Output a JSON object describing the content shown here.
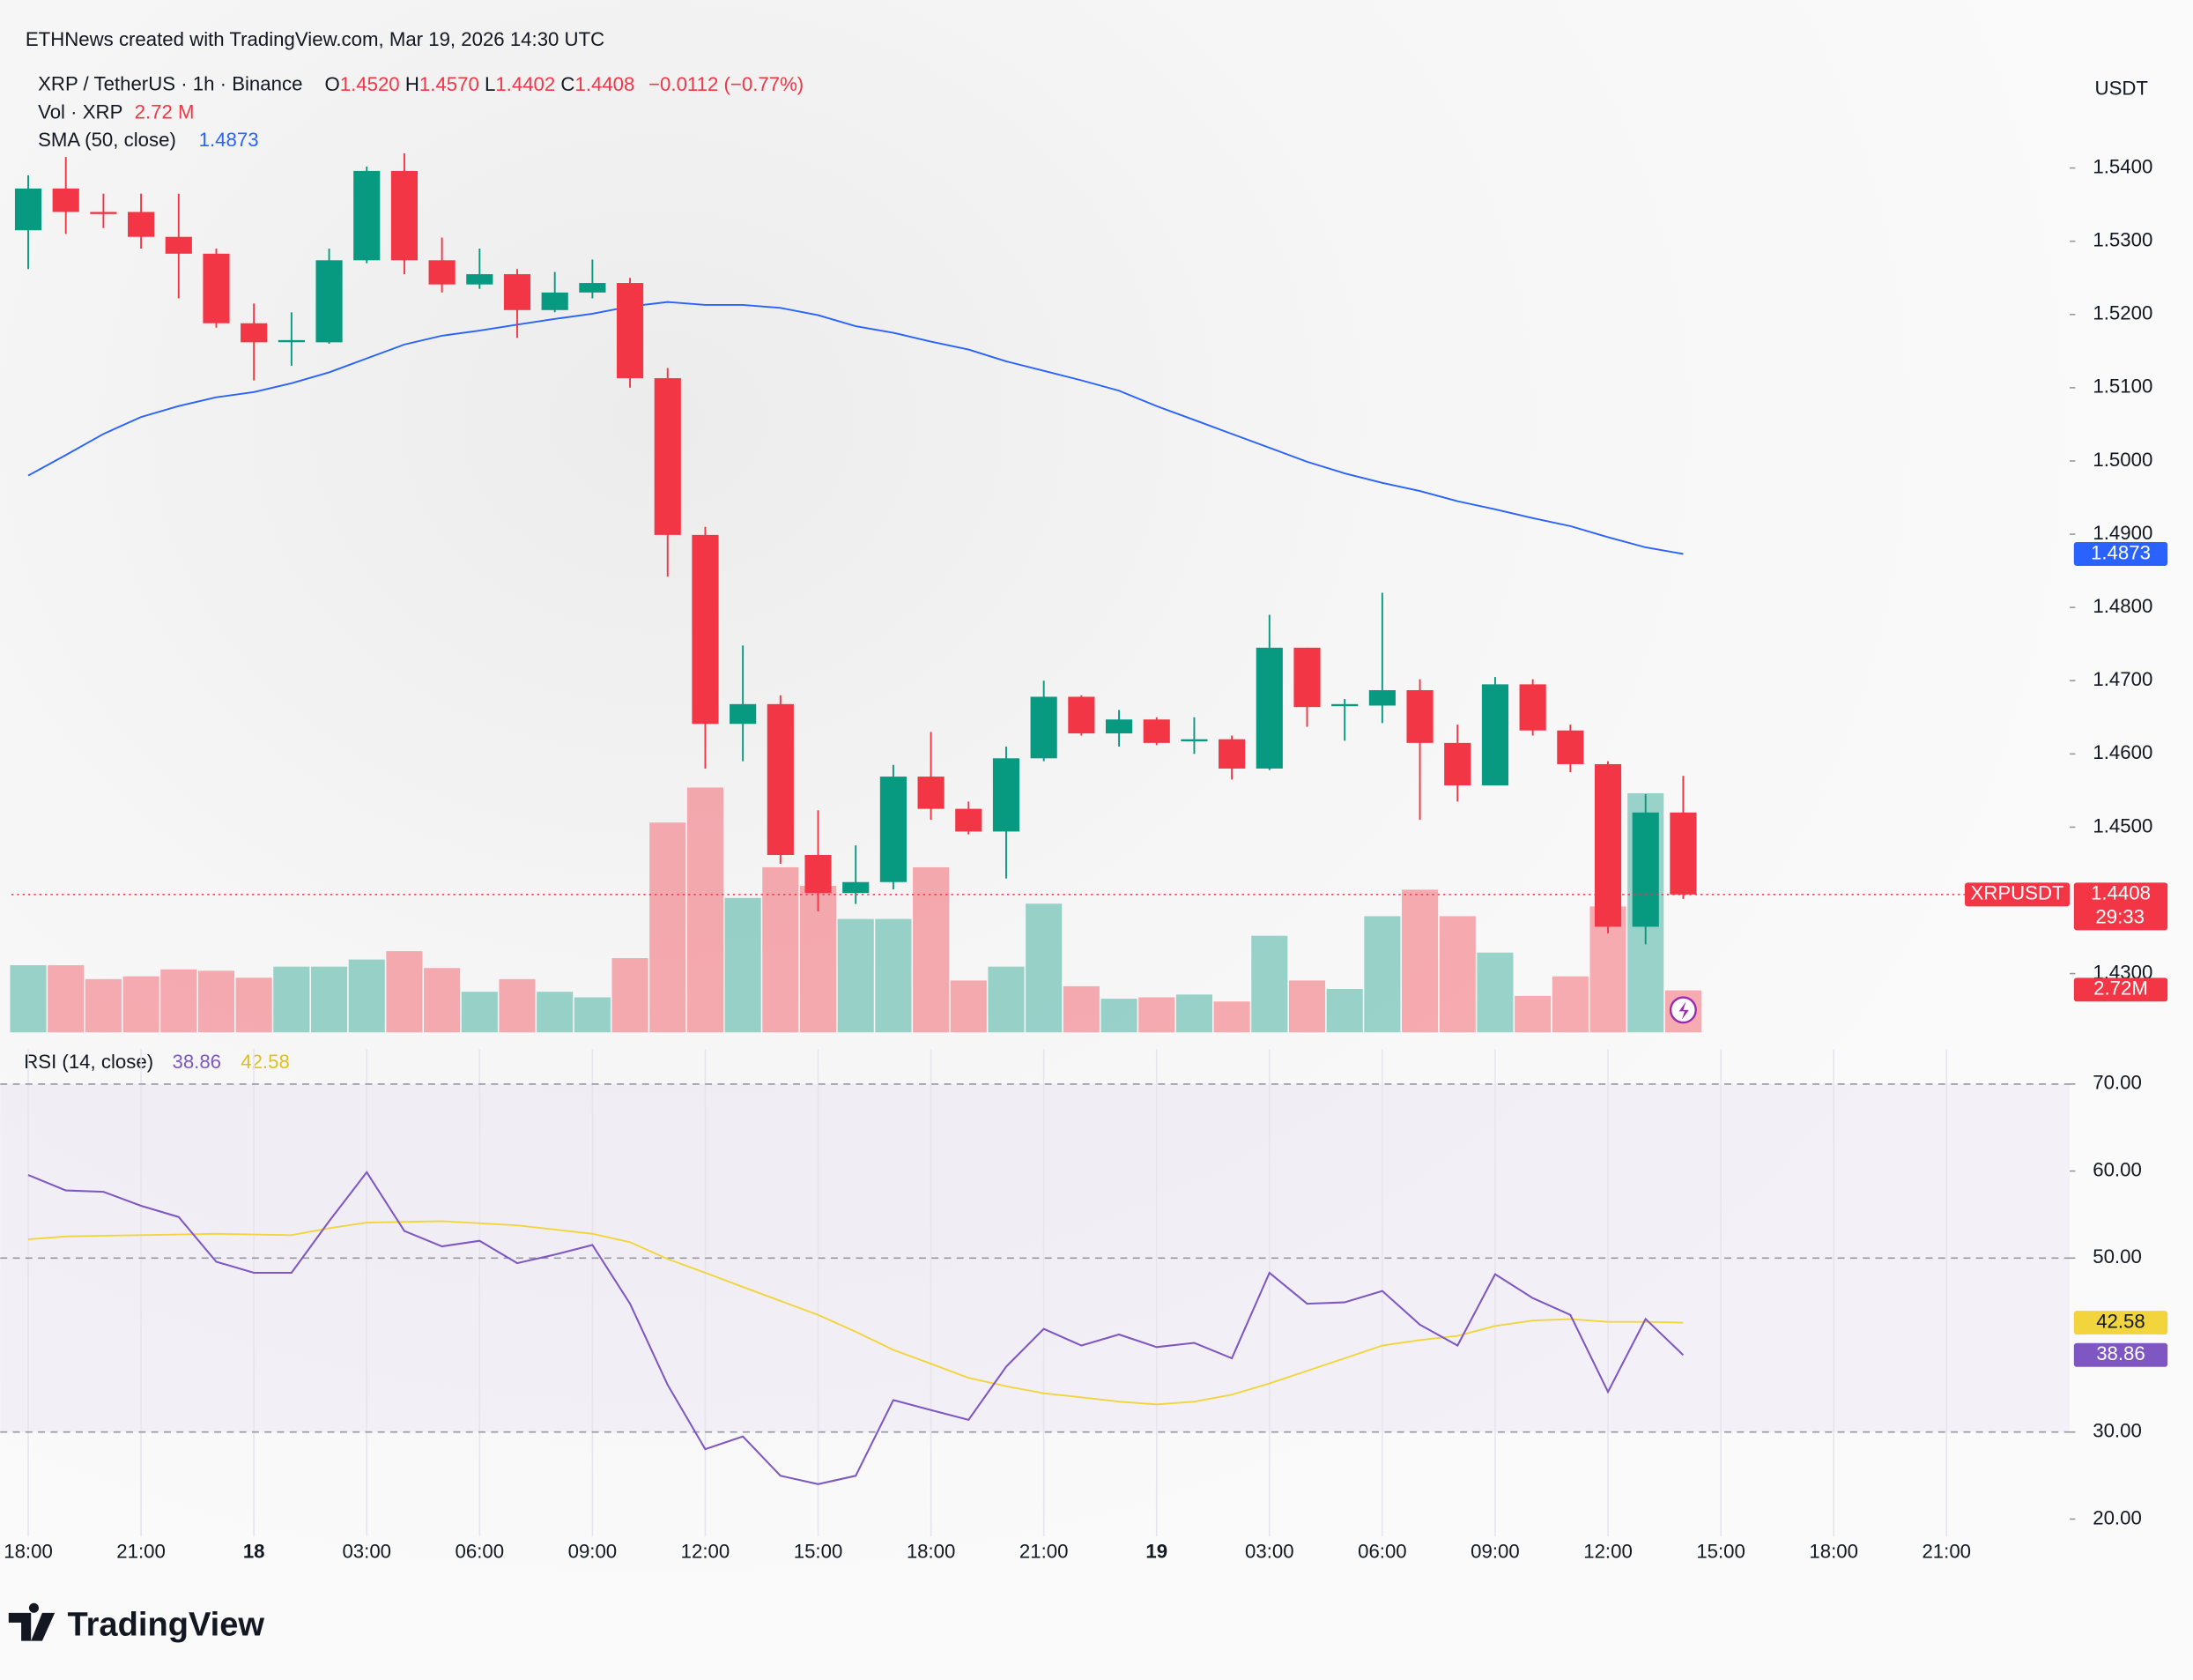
{
  "header": {
    "attribution": "ETHNews created with TradingView.com, Mar 19, 2026 14:30 UTC",
    "brand": "TradingView"
  },
  "chart_data": {
    "type": "candlestick",
    "symbol": "XRP / TetherUS · 1h · Binance",
    "ohlc_legend": {
      "open_prefix": "O",
      "open": "1.4520",
      "high_prefix": "H",
      "high": "1.4570",
      "low_prefix": "L",
      "low": "1.4402",
      "close_prefix": "C",
      "close": "1.4408",
      "change": "−0.0112 (−0.77%)"
    },
    "currency": "USDT",
    "ticker": "XRPUSDT",
    "countdown": "29:33",
    "up_color": "#089981",
    "down_color": "#f23645",
    "categories": [
      "18:00",
      null,
      null,
      "21:00",
      null,
      null,
      "18",
      null,
      null,
      "03:00",
      null,
      null,
      "06:00",
      null,
      null,
      "09:00",
      null,
      null,
      "12:00",
      null,
      null,
      "15:00",
      null,
      null,
      "18:00",
      null,
      null,
      "21:00",
      null,
      null,
      "19",
      null,
      null,
      "03:00",
      null,
      null,
      "06:00",
      null,
      null,
      "09:00",
      null,
      null,
      "12:00",
      null,
      null
    ],
    "future_labels": [
      "15:00",
      "18:00",
      "21:00"
    ],
    "candles": {
      "open": [
        1.5315,
        1.5372,
        1.534,
        1.534,
        1.5306,
        1.5283,
        1.5188,
        1.5163,
        1.5162,
        1.5274,
        1.5396,
        1.5274,
        1.5241,
        1.5255,
        1.5206,
        1.523,
        1.5243,
        1.5113,
        1.4899,
        1.4641,
        1.4668,
        1.4462,
        1.441,
        1.4425,
        1.4569,
        1.4525,
        1.4494,
        1.4594,
        1.4678,
        1.4628,
        1.4647,
        1.4618,
        1.462,
        1.458,
        1.4745,
        1.4666,
        1.4666,
        1.4687,
        1.4615,
        1.4557,
        1.4695,
        1.4632,
        1.4586,
        1.4364,
        1.452
      ],
      "high": [
        1.539,
        1.5415,
        1.5365,
        1.5365,
        1.5365,
        1.529,
        1.5215,
        1.5203,
        1.529,
        1.5402,
        1.542,
        1.5305,
        1.529,
        1.5262,
        1.5258,
        1.5275,
        1.525,
        1.5127,
        1.491,
        1.4748,
        1.468,
        1.4523,
        1.4475,
        1.4585,
        1.463,
        1.4535,
        1.461,
        1.47,
        1.468,
        1.466,
        1.465,
        1.465,
        1.4625,
        1.479,
        1.4745,
        1.4675,
        1.482,
        1.4702,
        1.464,
        1.4705,
        1.4702,
        1.464,
        1.459,
        1.4545,
        1.457
      ],
      "low": [
        1.5262,
        1.531,
        1.5318,
        1.529,
        1.5222,
        1.5182,
        1.511,
        1.513,
        1.516,
        1.527,
        1.5255,
        1.523,
        1.5235,
        1.5168,
        1.5203,
        1.5222,
        1.51,
        1.4842,
        1.458,
        1.459,
        1.445,
        1.4385,
        1.4395,
        1.4415,
        1.451,
        1.449,
        1.443,
        1.459,
        1.4625,
        1.461,
        1.4612,
        1.46,
        1.4565,
        1.4578,
        1.4637,
        1.4618,
        1.4642,
        1.451,
        1.4535,
        1.4557,
        1.4625,
        1.4575,
        1.4355,
        1.434,
        1.4402
      ],
      "close": [
        1.5372,
        1.534,
        1.5338,
        1.5306,
        1.5283,
        1.5188,
        1.5162,
        1.5165,
        1.5274,
        1.5396,
        1.5274,
        1.5241,
        1.5255,
        1.5206,
        1.523,
        1.5243,
        1.5113,
        1.4899,
        1.4641,
        1.4668,
        1.4462,
        1.441,
        1.4425,
        1.4569,
        1.4525,
        1.4494,
        1.4594,
        1.4678,
        1.4628,
        1.4647,
        1.4615,
        1.462,
        1.458,
        1.4745,
        1.4664,
        1.4668,
        1.4687,
        1.4615,
        1.4557,
        1.4695,
        1.4632,
        1.4586,
        1.4364,
        1.452,
        1.4408
      ]
    },
    "ylim": [
      1.4216,
      1.5553
    ],
    "yticks": [
      {
        "value": 1.54,
        "label": "1.5400"
      },
      {
        "value": 1.53,
        "label": "1.5300"
      },
      {
        "value": 1.52,
        "label": "1.5200"
      },
      {
        "value": 1.51,
        "label": "1.5100"
      },
      {
        "value": 1.5,
        "label": "1.5000"
      },
      {
        "value": 1.49,
        "label": "1.4900"
      },
      {
        "value": 1.48,
        "label": "1.4800"
      },
      {
        "value": 1.47,
        "label": "1.4700"
      },
      {
        "value": 1.46,
        "label": "1.4600"
      },
      {
        "value": 1.45,
        "label": "1.4500"
      },
      {
        "value": 1.43,
        "label": "1.4300"
      }
    ],
    "sma": {
      "name": "SMA (50, close)",
      "color": "#2962ff",
      "values": [
        1.498,
        1.5008,
        1.5037,
        1.506,
        1.5075,
        1.5087,
        1.5094,
        1.5106,
        1.5121,
        1.514,
        1.5159,
        1.5171,
        1.5178,
        1.5186,
        1.5194,
        1.5201,
        1.5211,
        1.5217,
        1.5213,
        1.5213,
        1.5209,
        1.5199,
        1.5184,
        1.5175,
        1.5163,
        1.5152,
        1.5136,
        1.5123,
        1.511,
        1.5096,
        1.5075,
        1.5056,
        1.5037,
        1.5018,
        1.4999,
        1.4983,
        1.497,
        1.4959,
        1.4945,
        1.4934,
        1.4922,
        1.4911,
        1.4896,
        1.4882,
        1.4873
      ]
    },
    "volume": {
      "name": "Vol · XRP",
      "legend_label": "2.72 M",
      "last_label": "2.72M",
      "values": [
        4.35,
        4.35,
        3.45,
        3.63,
        4.08,
        3.99,
        3.54,
        4.26,
        4.26,
        4.72,
        5.26,
        4.17,
        2.63,
        3.45,
        2.63,
        2.27,
        4.81,
        13.6,
        15.87,
        8.71,
        10.7,
        9.5,
        7.35,
        7.35,
        10.7,
        3.36,
        4.26,
        8.34,
        2.99,
        2.18,
        2.27,
        2.45,
        2.0,
        6.26,
        3.36,
        2.81,
        7.53,
        9.25,
        7.53,
        5.17,
        2.36,
        3.63,
        8.16,
        15.5,
        2.72
      ]
    },
    "rsi": {
      "name": "RSI (14, close)",
      "color": "#7e57c2",
      "sma_color": "#f2d53c",
      "values": [
        59.55,
        57.78,
        57.62,
        56.01,
        54.73,
        49.58,
        48.3,
        48.3,
        54.24,
        59.87,
        53.12,
        51.35,
        51.99,
        49.42,
        50.39,
        51.51,
        44.76,
        35.43,
        28.04,
        29.49,
        24.98,
        24.02,
        24.98,
        33.67,
        32.54,
        31.41,
        37.52,
        41.86,
        39.94,
        41.22,
        39.77,
        40.26,
        38.49,
        48.3,
        44.76,
        44.92,
        46.21,
        42.35,
        39.94,
        48.14,
        45.4,
        43.47,
        34.63,
        43.0,
        38.86
      ],
      "sma_values": [
        52.15,
        52.48,
        52.56,
        52.64,
        52.72,
        52.8,
        52.72,
        52.64,
        53.44,
        54.08,
        54.16,
        54.24,
        54.0,
        53.76,
        53.28,
        52.8,
        51.83,
        49.9,
        48.3,
        46.69,
        45.08,
        43.47,
        41.54,
        39.45,
        37.85,
        36.24,
        35.27,
        34.47,
        33.99,
        33.5,
        33.18,
        33.5,
        34.31,
        35.59,
        37.04,
        38.49,
        39.94,
        40.58,
        41.06,
        42.19,
        42.83,
        42.99,
        42.67,
        42.67,
        42.58
      ],
      "ylim": [
        18,
        74
      ],
      "yticks": [
        {
          "value": 70,
          "label": "70.00"
        },
        {
          "value": 60,
          "label": "60.00"
        },
        {
          "value": 50,
          "label": "50.00"
        },
        {
          "value": 30,
          "label": "30.00"
        },
        {
          "value": 20,
          "label": "20.00"
        }
      ],
      "levels": [
        70,
        50,
        30
      ]
    }
  }
}
